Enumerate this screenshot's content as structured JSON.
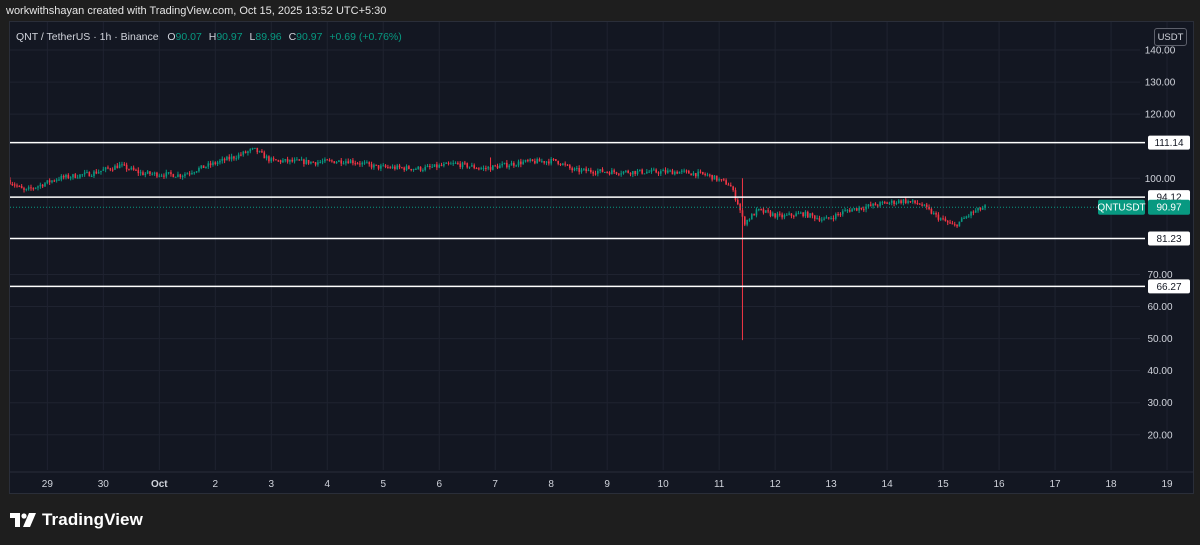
{
  "header": {
    "text": "workwithshayan created with TradingView.com, Oct 15, 2025 13:52 UTC+5:30"
  },
  "legend": {
    "symbol": "QNT / TetherUS · 1h · Binance",
    "o_label": "O",
    "o_value": "90.07",
    "h_label": "H",
    "h_value": "90.97",
    "l_label": "L",
    "l_value": "89.96",
    "c_label": "C",
    "c_value": "90.97",
    "change": "+0.69 (+0.76%)"
  },
  "currency": "USDT",
  "brand": {
    "name": "TradingView"
  },
  "colors": {
    "up": "#089981",
    "down": "#f23645",
    "background": "#131722",
    "level_line": "#ffffff",
    "grid": "#1f2330"
  },
  "chart_data": {
    "type": "candlestick",
    "symbol": "QNTUSDT",
    "interval": "1h",
    "y_axis": {
      "ticks": [
        "20.00",
        "30.00",
        "40.00",
        "50.00",
        "60.00",
        "70.00",
        "100.00",
        "120.00",
        "130.00",
        "140.00"
      ],
      "ylim": [
        11.5,
        147.5
      ]
    },
    "x_axis": {
      "ticks": [
        "29",
        "30",
        "Oct",
        "2",
        "3",
        "4",
        "5",
        "6",
        "7",
        "8",
        "9",
        "10",
        "11",
        "12",
        "13",
        "14",
        "15",
        "16",
        "17",
        "18",
        "19"
      ],
      "range": [
        "2025-09-28T08:00",
        "2025-10-19T12:00"
      ]
    },
    "last_price": {
      "label": "QNTUSDT",
      "value": "90.97"
    },
    "levels": [
      {
        "value": 111.14,
        "label": "111.14"
      },
      {
        "value": 94.12,
        "label": "94.12"
      },
      {
        "value": 81.23,
        "label": "81.23"
      },
      {
        "value": 66.27,
        "label": "66.27"
      }
    ],
    "price_path": [
      {
        "day": 0,
        "price": 99.5
      },
      {
        "day": 0.3,
        "price": 96.0
      },
      {
        "day": 0.9,
        "price": 100.0
      },
      {
        "day": 1.5,
        "price": 101.5
      },
      {
        "day": 2.0,
        "price": 104.0
      },
      {
        "day": 2.4,
        "price": 101.5
      },
      {
        "day": 3.1,
        "price": 101.0
      },
      {
        "day": 3.5,
        "price": 103.5
      },
      {
        "day": 4.1,
        "price": 107.0
      },
      {
        "day": 4.4,
        "price": 109.0
      },
      {
        "day": 4.7,
        "price": 105.5
      },
      {
        "day": 5.5,
        "price": 105.0
      },
      {
        "day": 6.1,
        "price": 105.5
      },
      {
        "day": 6.6,
        "price": 103.5
      },
      {
        "day": 7.4,
        "price": 103.0
      },
      {
        "day": 8.0,
        "price": 104.5
      },
      {
        "day": 8.5,
        "price": 103.0
      },
      {
        "day": 9.2,
        "price": 105.0
      },
      {
        "day": 9.8,
        "price": 105.5
      },
      {
        "day": 10.1,
        "price": 102.5
      },
      {
        "day": 10.8,
        "price": 102.0
      },
      {
        "day": 11.4,
        "price": 102.0
      },
      {
        "day": 12.0,
        "price": 102.0
      },
      {
        "day": 12.5,
        "price": 101.0
      },
      {
        "day": 12.9,
        "price": 98.0
      },
      {
        "day": 13.05,
        "price": 92.0
      },
      {
        "day": 13.15,
        "price": 86.0
      },
      {
        "day": 13.4,
        "price": 90.0
      },
      {
        "day": 13.8,
        "price": 88.0
      },
      {
        "day": 14.2,
        "price": 89.0
      },
      {
        "day": 14.6,
        "price": 87.0
      },
      {
        "day": 15.0,
        "price": 90.0
      },
      {
        "day": 15.6,
        "price": 92.0
      },
      {
        "day": 16.0,
        "price": 93.0
      },
      {
        "day": 16.3,
        "price": 92.0
      },
      {
        "day": 16.6,
        "price": 88.0
      },
      {
        "day": 16.9,
        "price": 85.0
      },
      {
        "day": 17.2,
        "price": 89.0
      },
      {
        "day": 17.45,
        "price": 90.97
      }
    ],
    "notable_wicks": [
      {
        "day": 13.08,
        "high": 100.0,
        "low": 49.5
      },
      {
        "day": 8.6,
        "high": 106.5,
        "low": 102.0
      }
    ]
  }
}
